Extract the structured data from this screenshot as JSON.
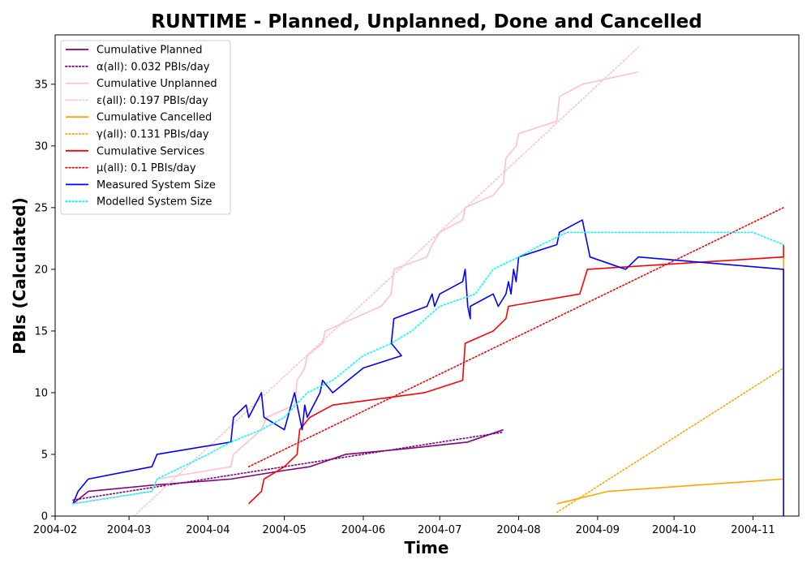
{
  "chart_data": {
    "type": "line",
    "title": "RUNTIME - Planned, Unplanned, Done  and Cancelled",
    "xlabel": "Time",
    "ylabel": "PBIs (Calculated)",
    "xlim": [
      "2004-02-01",
      "2004-11-19"
    ],
    "ylim": [
      0,
      39
    ],
    "grid": false,
    "legend_position": "top-left",
    "x_ticks": [
      "2004-02",
      "2004-03",
      "2004-04",
      "2004-05",
      "2004-06",
      "2004-07",
      "2004-08",
      "2004-09",
      "2004-10",
      "2004-11"
    ],
    "y_ticks": [
      0,
      5,
      10,
      15,
      20,
      25,
      30,
      35
    ],
    "series": [
      {
        "name": "Cumulative Planned",
        "color": "#800080",
        "style": "solid",
        "points": [
          [
            "2004-02-08",
            1
          ],
          [
            "2004-02-14",
            2
          ],
          [
            "2004-03-10",
            2.5
          ],
          [
            "2004-04-10",
            3
          ],
          [
            "2004-05-01",
            3.7
          ],
          [
            "2004-05-11",
            4
          ],
          [
            "2004-05-25",
            5
          ],
          [
            "2004-06-15",
            5.4
          ],
          [
            "2004-07-12",
            6
          ],
          [
            "2004-07-26",
            7
          ]
        ]
      },
      {
        "name": "α(all): 0.032 PBIs/day",
        "color": "#800080",
        "style": "dotted",
        "points": [
          [
            "2004-02-08",
            1.3
          ],
          [
            "2004-07-26",
            6.8
          ]
        ]
      },
      {
        "name": "Cumulative Unplanned",
        "color": "#ffc0cb",
        "style": "solid",
        "points": [
          [
            "2004-02-08",
            1
          ],
          [
            "2004-03-10",
            2
          ],
          [
            "2004-03-12",
            3
          ],
          [
            "2004-04-10",
            4
          ],
          [
            "2004-04-11",
            5
          ],
          [
            "2004-04-22",
            7
          ],
          [
            "2004-04-24",
            8
          ],
          [
            "2004-05-05",
            9
          ],
          [
            "2004-05-06",
            11
          ],
          [
            "2004-05-09",
            12
          ],
          [
            "2004-05-10",
            13
          ],
          [
            "2004-05-16",
            14
          ],
          [
            "2004-05-17",
            15
          ],
          [
            "2004-06-08",
            17
          ],
          [
            "2004-06-12",
            18
          ],
          [
            "2004-06-13",
            20
          ],
          [
            "2004-06-26",
            21
          ],
          [
            "2004-06-28",
            22
          ],
          [
            "2004-07-01",
            23
          ],
          [
            "2004-07-10",
            24
          ],
          [
            "2004-07-11",
            25
          ],
          [
            "2004-07-22",
            26
          ],
          [
            "2004-07-26",
            27
          ],
          [
            "2004-07-27",
            29
          ],
          [
            "2004-07-31",
            30
          ],
          [
            "2004-08-01",
            31
          ],
          [
            "2004-08-16",
            32
          ],
          [
            "2004-08-17",
            34
          ],
          [
            "2004-08-26",
            35
          ],
          [
            "2004-09-17",
            36
          ]
        ]
      },
      {
        "name": "ε(all): 0.197 PBIs/day",
        "color": "#ffc0cb",
        "style": "dotted",
        "points": [
          [
            "2004-03-03",
            0
          ],
          [
            "2004-09-17",
            38
          ]
        ]
      },
      {
        "name": "Cumulative Cancelled",
        "color": "#ffa500",
        "style": "solid",
        "points": [
          [
            "2004-08-16",
            1
          ],
          [
            "2004-09-05",
            2
          ],
          [
            "2004-11-13",
            3
          ],
          [
            "2004-11-13",
            21
          ]
        ]
      },
      {
        "name": "γ(all): 0.131 PBIs/day",
        "color": "#ffa500",
        "style": "dotted",
        "points": [
          [
            "2004-08-16",
            0.3
          ],
          [
            "2004-11-13",
            12
          ]
        ]
      },
      {
        "name": "Cumulative Services",
        "color": "#ff0000",
        "style": "solid",
        "points": [
          [
            "2004-04-17",
            1
          ],
          [
            "2004-04-22",
            2
          ],
          [
            "2004-04-23",
            3
          ],
          [
            "2004-05-01",
            4
          ],
          [
            "2004-05-06",
            5
          ],
          [
            "2004-05-07",
            7
          ],
          [
            "2004-05-11",
            8
          ],
          [
            "2004-05-20",
            9
          ],
          [
            "2004-06-25",
            10
          ],
          [
            "2004-07-10",
            11
          ],
          [
            "2004-07-11",
            14
          ],
          [
            "2004-07-22",
            15
          ],
          [
            "2004-07-27",
            16
          ],
          [
            "2004-07-28",
            17
          ],
          [
            "2004-08-25",
            18
          ],
          [
            "2004-08-28",
            20
          ],
          [
            "2004-11-13",
            21
          ],
          [
            "2004-11-13",
            22
          ]
        ]
      },
      {
        "name": "μ(all): 0.1 PBIs/day",
        "color": "#ff0000",
        "style": "dotted",
        "points": [
          [
            "2004-04-17",
            4
          ],
          [
            "2004-11-13",
            25
          ]
        ]
      },
      {
        "name": "Measured System Size",
        "color": "#0000ff",
        "style": "solid",
        "points": [
          [
            "2004-02-08",
            1
          ],
          [
            "2004-02-10",
            2
          ],
          [
            "2004-02-14",
            3
          ],
          [
            "2004-03-10",
            4
          ],
          [
            "2004-03-12",
            5
          ],
          [
            "2004-04-10",
            6
          ],
          [
            "2004-04-11",
            8
          ],
          [
            "2004-04-16",
            9
          ],
          [
            "2004-04-17",
            8
          ],
          [
            "2004-04-22",
            10
          ],
          [
            "2004-04-23",
            8
          ],
          [
            "2004-05-01",
            7
          ],
          [
            "2004-05-05",
            10
          ],
          [
            "2004-05-07",
            8
          ],
          [
            "2004-05-08",
            7
          ],
          [
            "2004-05-09",
            9
          ],
          [
            "2004-05-10",
            8
          ],
          [
            "2004-05-15",
            10
          ],
          [
            "2004-05-16",
            11
          ],
          [
            "2004-05-20",
            10
          ],
          [
            "2004-06-01",
            12
          ],
          [
            "2004-06-16",
            13
          ],
          [
            "2004-06-12",
            14
          ],
          [
            "2004-06-13",
            16
          ],
          [
            "2004-06-26",
            17
          ],
          [
            "2004-06-28",
            18
          ],
          [
            "2004-06-29",
            17
          ],
          [
            "2004-07-01",
            18
          ],
          [
            "2004-07-10",
            19
          ],
          [
            "2004-07-11",
            20
          ],
          [
            "2004-07-12",
            17
          ],
          [
            "2004-07-13",
            16
          ],
          [
            "2004-07-13",
            17
          ],
          [
            "2004-07-22",
            18
          ],
          [
            "2004-07-24",
            17
          ],
          [
            "2004-07-27",
            18
          ],
          [
            "2004-07-28",
            19
          ],
          [
            "2004-07-29",
            18
          ],
          [
            "2004-07-30",
            20
          ],
          [
            "2004-07-31",
            19
          ],
          [
            "2004-08-01",
            21
          ],
          [
            "2004-08-16",
            22
          ],
          [
            "2004-08-17",
            23
          ],
          [
            "2004-08-26",
            24
          ],
          [
            "2004-08-28",
            22
          ],
          [
            "2004-08-29",
            21
          ],
          [
            "2004-09-12",
            20
          ],
          [
            "2004-09-17",
            21
          ],
          [
            "2004-11-13",
            20
          ],
          [
            "2004-11-13",
            0
          ]
        ]
      },
      {
        "name": "Modelled System Size",
        "color": "#00ffff",
        "style": "dotted",
        "points": [
          [
            "2004-02-08",
            1
          ],
          [
            "2004-03-10",
            2
          ],
          [
            "2004-03-12",
            3
          ],
          [
            "2004-03-22",
            4
          ],
          [
            "2004-04-01",
            5
          ],
          [
            "2004-04-10",
            6
          ],
          [
            "2004-04-22",
            7
          ],
          [
            "2004-05-01",
            8
          ],
          [
            "2004-05-10",
            10
          ],
          [
            "2004-05-20",
            11
          ],
          [
            "2004-06-01",
            13
          ],
          [
            "2004-06-12",
            14
          ],
          [
            "2004-06-20",
            15
          ],
          [
            "2004-07-01",
            17
          ],
          [
            "2004-07-15",
            18
          ],
          [
            "2004-07-22",
            20
          ],
          [
            "2004-08-01",
            21
          ],
          [
            "2004-08-10",
            22
          ],
          [
            "2004-08-20",
            23
          ],
          [
            "2004-09-01",
            23
          ],
          [
            "2004-09-15",
            23
          ],
          [
            "2004-10-01",
            23
          ],
          [
            "2004-10-15",
            23
          ],
          [
            "2004-11-01",
            23
          ],
          [
            "2004-11-13",
            22
          ]
        ]
      }
    ]
  }
}
